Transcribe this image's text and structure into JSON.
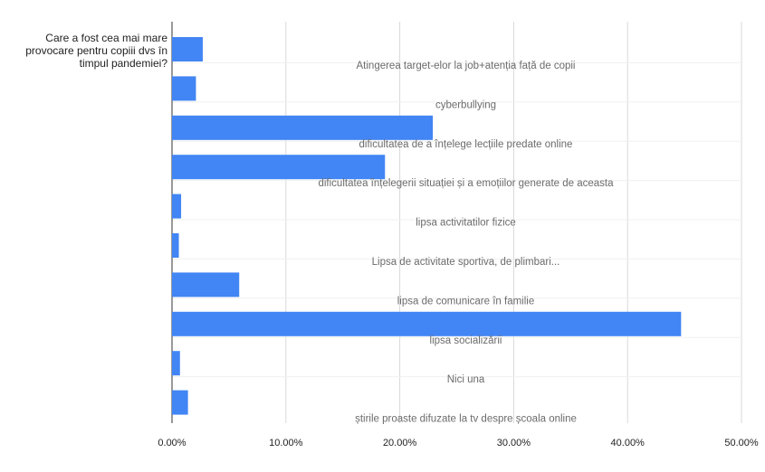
{
  "chart_data": {
    "type": "bar",
    "orientation": "horizontal",
    "ylabel": "Care a fost cea mai mare provocare pentru copiii dvs în timpul pandemiei?",
    "xlabel": "",
    "title": "",
    "categories": [
      "Atingerea target-elor la job+atenția față de copii",
      "cyberbullying",
      "dificultatea de a înțelege lecțiile predate online",
      "dificultatea înțelegerii situației și a emoțiilor generate de aceasta",
      "lipsa activitatilor fizice",
      "Lipsa de activitate sportiva, de plimbari...",
      "lipsa de comunicare în familie",
      "lipsa socializării",
      "Nici una",
      "știrile proaste difuzate la tv despre școala online"
    ],
    "values": [
      2.7,
      2.1,
      22.9,
      18.7,
      0.8,
      0.6,
      5.9,
      44.7,
      0.7,
      1.4
    ],
    "xlim": [
      0,
      50
    ],
    "ticks": [
      "0.00%",
      "10.00%",
      "20.00%",
      "30.00%",
      "40.00%",
      "50.00%"
    ],
    "tick_values": [
      0,
      10,
      20,
      30,
      40,
      50
    ],
    "grid": true,
    "legend": "none",
    "bar_color": "#4285f4",
    "grid_color": "#d9d9d9",
    "axis_color": "#333333"
  }
}
